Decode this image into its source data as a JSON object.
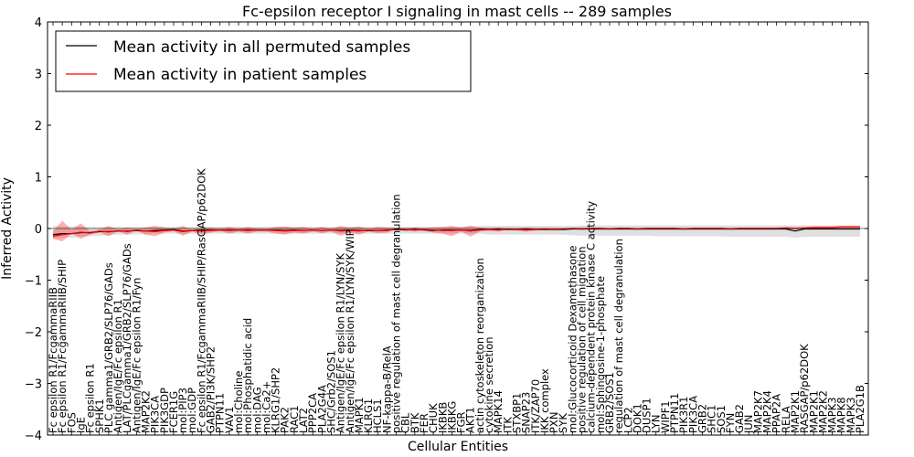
{
  "chart_data": {
    "type": "line",
    "title": "Fc-epsilon receptor I signaling in mast cells -- 289 samples",
    "xlabel": "Cellular Entities",
    "ylabel": "Inferred Activity",
    "ylim": [
      -4,
      4
    ],
    "yticks": [
      -4,
      -3,
      -2,
      -1,
      0,
      1,
      2,
      3,
      4
    ],
    "ytick_labels": [
      "−4",
      "−3",
      "−2",
      "−1",
      "0",
      "1",
      "2",
      "3",
      "4"
    ],
    "legend": {
      "placement": "top-left",
      "entries": [
        {
          "label": "Mean activity in all permuted samples",
          "color": "#000000"
        },
        {
          "label": "Mean activity in patient samples",
          "color": "#ff0000"
        }
      ]
    },
    "categories": [
      "Fc epsilon R1/FcgammaRIIB",
      "Fc epsilon R1/FcgammaRIIB/SHIP",
      "FOS",
      "IgE",
      "Fc epsilon R1",
      "SPHK1",
      "PLC gamma1/GRB2/SLP76/GADs",
      "Antigen/IgE/Fc epsilon R1",
      "LAT/PLCgamma1/GRB2/SLP76/GADs",
      "Antigen/IgE/Fc epsilon R1/Fyn",
      "MAP2K2",
      "PIK3CA",
      "PIK3GDP",
      "FCER1G",
      "mol:PIP3",
      "mol:GDP",
      "Fc epsilon R1/FcgammaRIIB/SHIP/RasGAP/p62DOK",
      "GAB2/PI3K/SHP2",
      "PTPN11",
      "VAV1",
      "mol:Choline",
      "mol:Phosphatidic acid",
      "mol:DAG",
      "mol:Ca2+",
      "KLRG1/SHP2",
      "PAK2",
      "RAC1",
      "LAT2",
      "PPP2CA",
      "PLA2G4A",
      "SHC/Grb2/SOS1",
      "Antigen/IgE/Fc epsilon R1/LYN/SYK",
      "Antigen/IgE/Fc epsilon R1/LYN/SYK/WIP",
      "MAPK1",
      "KLRG1",
      "HCLS1",
      "NF-kappa-B/RelA",
      "positive regulation of mast cell degranulation",
      "CBL",
      "BTK",
      "FER",
      "CHUK",
      "IKBKB",
      "IKBKG",
      "FGR",
      "AKT1",
      "actin cytoskeleton reorganization",
      "cytokine secretion",
      "MAPK14",
      "ITK",
      "STXBP1",
      "SNAP23",
      "ITK/ZAP70",
      "IKK complex",
      "PXN",
      "SYK",
      "mol:Glucocorticoid Dexamethasone",
      "positive regulation of cell migration",
      "calcium-dependent protein kinase C activity",
      "mol:Sphingosine-1-phosphate",
      "GRB2/SOS1",
      "regulation of mast cell degranulation",
      "LCP2",
      "DOK1",
      "DUSP1",
      "LYN",
      "WIPF1",
      "PTPN11",
      "PIK3R1",
      "PIK3CA",
      "GRB2",
      "SHC1",
      "SOS1",
      "FYN",
      "GAB2",
      "JUN",
      "MAP2K7",
      "MAP2K4",
      "PPAP2A",
      "RELA",
      "MAP2K1",
      "RASGAP/p62DOK",
      "MAP2K1",
      "MAP2K2",
      "MAPK3",
      "MAPK8",
      "MAPK3",
      "PLA2G1B"
    ],
    "series": [
      {
        "name": "Mean activity in all permuted samples",
        "color": "#000000",
        "values": [
          -0.12,
          -0.1,
          -0.1,
          -0.08,
          -0.08,
          -0.06,
          -0.06,
          -0.05,
          -0.05,
          -0.04,
          -0.05,
          -0.04,
          -0.03,
          -0.02,
          -0.05,
          -0.04,
          -0.03,
          -0.03,
          -0.03,
          -0.03,
          -0.03,
          -0.03,
          -0.03,
          -0.03,
          -0.03,
          -0.04,
          -0.03,
          -0.04,
          -0.03,
          -0.04,
          -0.03,
          -0.04,
          -0.03,
          -0.04,
          -0.04,
          -0.04,
          -0.03,
          -0.02,
          -0.03,
          -0.02,
          -0.03,
          -0.04,
          -0.03,
          -0.03,
          -0.03,
          -0.04,
          -0.02,
          -0.02,
          -0.02,
          -0.02,
          -0.02,
          -0.02,
          -0.02,
          -0.02,
          -0.02,
          -0.02,
          -0.01,
          -0.01,
          -0.01,
          -0.01,
          -0.01,
          -0.01,
          -0.01,
          -0.01,
          -0.01,
          -0.01,
          -0.01,
          -0.01,
          -0.01,
          -0.01,
          -0.01,
          -0.01,
          -0.01,
          -0.01,
          -0.01,
          -0.01,
          -0.01,
          -0.01,
          -0.01,
          -0.01,
          -0.05,
          -0.01,
          -0.01,
          -0.01,
          -0.01,
          -0.01,
          -0.01,
          -0.01
        ]
      },
      {
        "name": "Mean activity in patient samples",
        "color": "#ff0000",
        "values": [
          -0.15,
          -0.12,
          -0.1,
          -0.07,
          -0.09,
          -0.05,
          -0.07,
          -0.04,
          -0.06,
          -0.03,
          -0.05,
          -0.06,
          -0.04,
          -0.03,
          -0.06,
          -0.04,
          -0.05,
          -0.04,
          -0.03,
          -0.04,
          -0.03,
          -0.04,
          -0.03,
          -0.03,
          -0.04,
          -0.05,
          -0.04,
          -0.04,
          -0.03,
          -0.04,
          -0.03,
          -0.05,
          -0.04,
          -0.05,
          -0.03,
          -0.04,
          -0.04,
          -0.01,
          -0.02,
          -0.03,
          -0.02,
          -0.03,
          -0.04,
          -0.04,
          -0.03,
          -0.05,
          -0.03,
          -0.02,
          -0.03,
          -0.01,
          -0.02,
          -0.03,
          -0.02,
          -0.01,
          -0.02,
          -0.01,
          0.0,
          -0.01,
          0.0,
          0.0,
          -0.01,
          0.0,
          0.0,
          -0.01,
          0.0,
          0.0,
          0.0,
          0.0,
          -0.01,
          0.0,
          0.0,
          0.0,
          0.0,
          -0.01,
          0.0,
          0.0,
          0.0,
          0.0,
          0.0,
          0.01,
          0.0,
          0.01,
          0.02,
          0.02,
          0.02,
          0.03,
          0.03,
          0.03
        ]
      }
    ],
    "band_permuted": {
      "name": "Permuted samples spread",
      "color": "#999999",
      "lower": [
        -0.2,
        -0.18,
        -0.18,
        -0.16,
        -0.15,
        -0.14,
        -0.13,
        -0.12,
        -0.12,
        -0.11,
        -0.12,
        -0.1,
        -0.1,
        -0.1,
        -0.11,
        -0.1,
        -0.1,
        -0.1,
        -0.1,
        -0.1,
        -0.1,
        -0.1,
        -0.1,
        -0.1,
        -0.1,
        -0.1,
        -0.1,
        -0.1,
        -0.1,
        -0.1,
        -0.1,
        -0.1,
        -0.1,
        -0.1,
        -0.1,
        -0.1,
        -0.1,
        -0.1,
        -0.1,
        -0.1,
        -0.1,
        -0.1,
        -0.1,
        -0.1,
        -0.1,
        -0.1,
        -0.1,
        -0.12,
        -0.12,
        -0.12,
        -0.12,
        -0.12,
        -0.12,
        -0.12,
        -0.12,
        -0.12,
        -0.13,
        -0.14,
        -0.14,
        -0.14,
        -0.14,
        -0.14,
        -0.14,
        -0.14,
        -0.14,
        -0.15,
        -0.15,
        -0.15,
        -0.15,
        -0.15,
        -0.15,
        -0.15,
        -0.15,
        -0.16,
        -0.16,
        -0.16,
        -0.16,
        -0.16,
        -0.16,
        -0.16,
        -0.18,
        -0.16,
        -0.16,
        -0.16,
        -0.16,
        -0.16,
        -0.16,
        -0.16
      ],
      "upper": [
        0.05,
        0.04,
        0.04,
        0.04,
        0.03,
        0.03,
        0.03,
        0.03,
        0.03,
        0.03,
        0.03,
        0.03,
        0.03,
        0.03,
        0.03,
        0.03,
        0.03,
        0.03,
        0.03,
        0.03,
        0.03,
        0.03,
        0.03,
        0.03,
        0.03,
        0.03,
        0.03,
        0.03,
        0.03,
        0.03,
        0.03,
        0.03,
        0.03,
        0.03,
        0.03,
        0.03,
        0.03,
        0.03,
        0.03,
        0.03,
        0.03,
        0.03,
        0.03,
        0.03,
        0.03,
        0.03,
        0.05,
        0.05,
        0.05,
        0.05,
        0.05,
        0.05,
        0.05,
        0.05,
        0.05,
        0.05,
        0.05,
        0.06,
        0.06,
        0.06,
        0.06,
        0.06,
        0.06,
        0.06,
        0.06,
        0.06,
        0.06,
        0.06,
        0.06,
        0.06,
        0.06,
        0.06,
        0.06,
        0.06,
        0.06,
        0.06,
        0.06,
        0.06,
        0.06,
        0.06,
        0.06,
        0.06,
        0.06,
        0.06,
        0.06,
        0.06,
        0.06,
        0.06
      ]
    },
    "band_patient": {
      "name": "Patient samples spread",
      "color": "#ff0000",
      "lower": [
        -0.2,
        -0.25,
        -0.1,
        -0.2,
        -0.12,
        -0.08,
        -0.15,
        -0.05,
        -0.12,
        -0.04,
        -0.12,
        -0.15,
        -0.08,
        -0.05,
        -0.14,
        -0.06,
        -0.12,
        -0.08,
        -0.05,
        -0.1,
        -0.06,
        -0.1,
        -0.06,
        -0.06,
        -0.1,
        -0.12,
        -0.08,
        -0.1,
        -0.06,
        -0.09,
        -0.06,
        -0.14,
        -0.08,
        -0.12,
        -0.06,
        -0.09,
        -0.08,
        -0.01,
        -0.04,
        -0.06,
        -0.04,
        -0.08,
        -0.1,
        -0.15,
        -0.06,
        -0.16,
        -0.06,
        -0.04,
        -0.06,
        -0.02,
        -0.04,
        -0.06,
        -0.04,
        -0.02,
        -0.04,
        -0.02,
        -0.01,
        -0.03,
        -0.02,
        -0.02,
        -0.03,
        -0.02,
        -0.02,
        -0.03,
        -0.02,
        -0.02,
        -0.02,
        -0.02,
        -0.03,
        -0.02,
        -0.02,
        -0.02,
        -0.02,
        -0.03,
        -0.02,
        -0.02,
        -0.02,
        -0.02,
        -0.02,
        -0.01,
        -0.02,
        -0.01,
        0.0,
        0.0,
        0.0,
        0.01,
        0.01,
        0.01
      ],
      "upper": [
        -0.05,
        0.15,
        -0.02,
        0.1,
        -0.05,
        -0.02,
        0.05,
        -0.02,
        0.02,
        -0.01,
        0.02,
        0.05,
        0.02,
        -0.01,
        0.05,
        -0.02,
        0.02,
        0.02,
        -0.01,
        0.03,
        -0.01,
        0.03,
        -0.01,
        -0.01,
        0.03,
        0.04,
        0.02,
        0.03,
        -0.01,
        0.03,
        -0.01,
        0.05,
        0.02,
        0.04,
        -0.01,
        0.03,
        0.02,
        0.0,
        0.0,
        0.02,
        0.0,
        0.02,
        0.03,
        0.05,
        0.02,
        0.06,
        0.02,
        0.0,
        0.02,
        0.0,
        0.0,
        0.02,
        0.0,
        0.0,
        0.0,
        0.0,
        0.01,
        0.02,
        0.02,
        0.02,
        0.01,
        0.02,
        0.02,
        0.01,
        0.02,
        0.02,
        0.02,
        0.02,
        0.01,
        0.02,
        0.02,
        0.02,
        0.02,
        0.01,
        0.02,
        0.02,
        0.02,
        0.02,
        0.02,
        0.03,
        0.02,
        0.03,
        0.04,
        0.04,
        0.04,
        0.05,
        0.05,
        0.05
      ]
    }
  }
}
